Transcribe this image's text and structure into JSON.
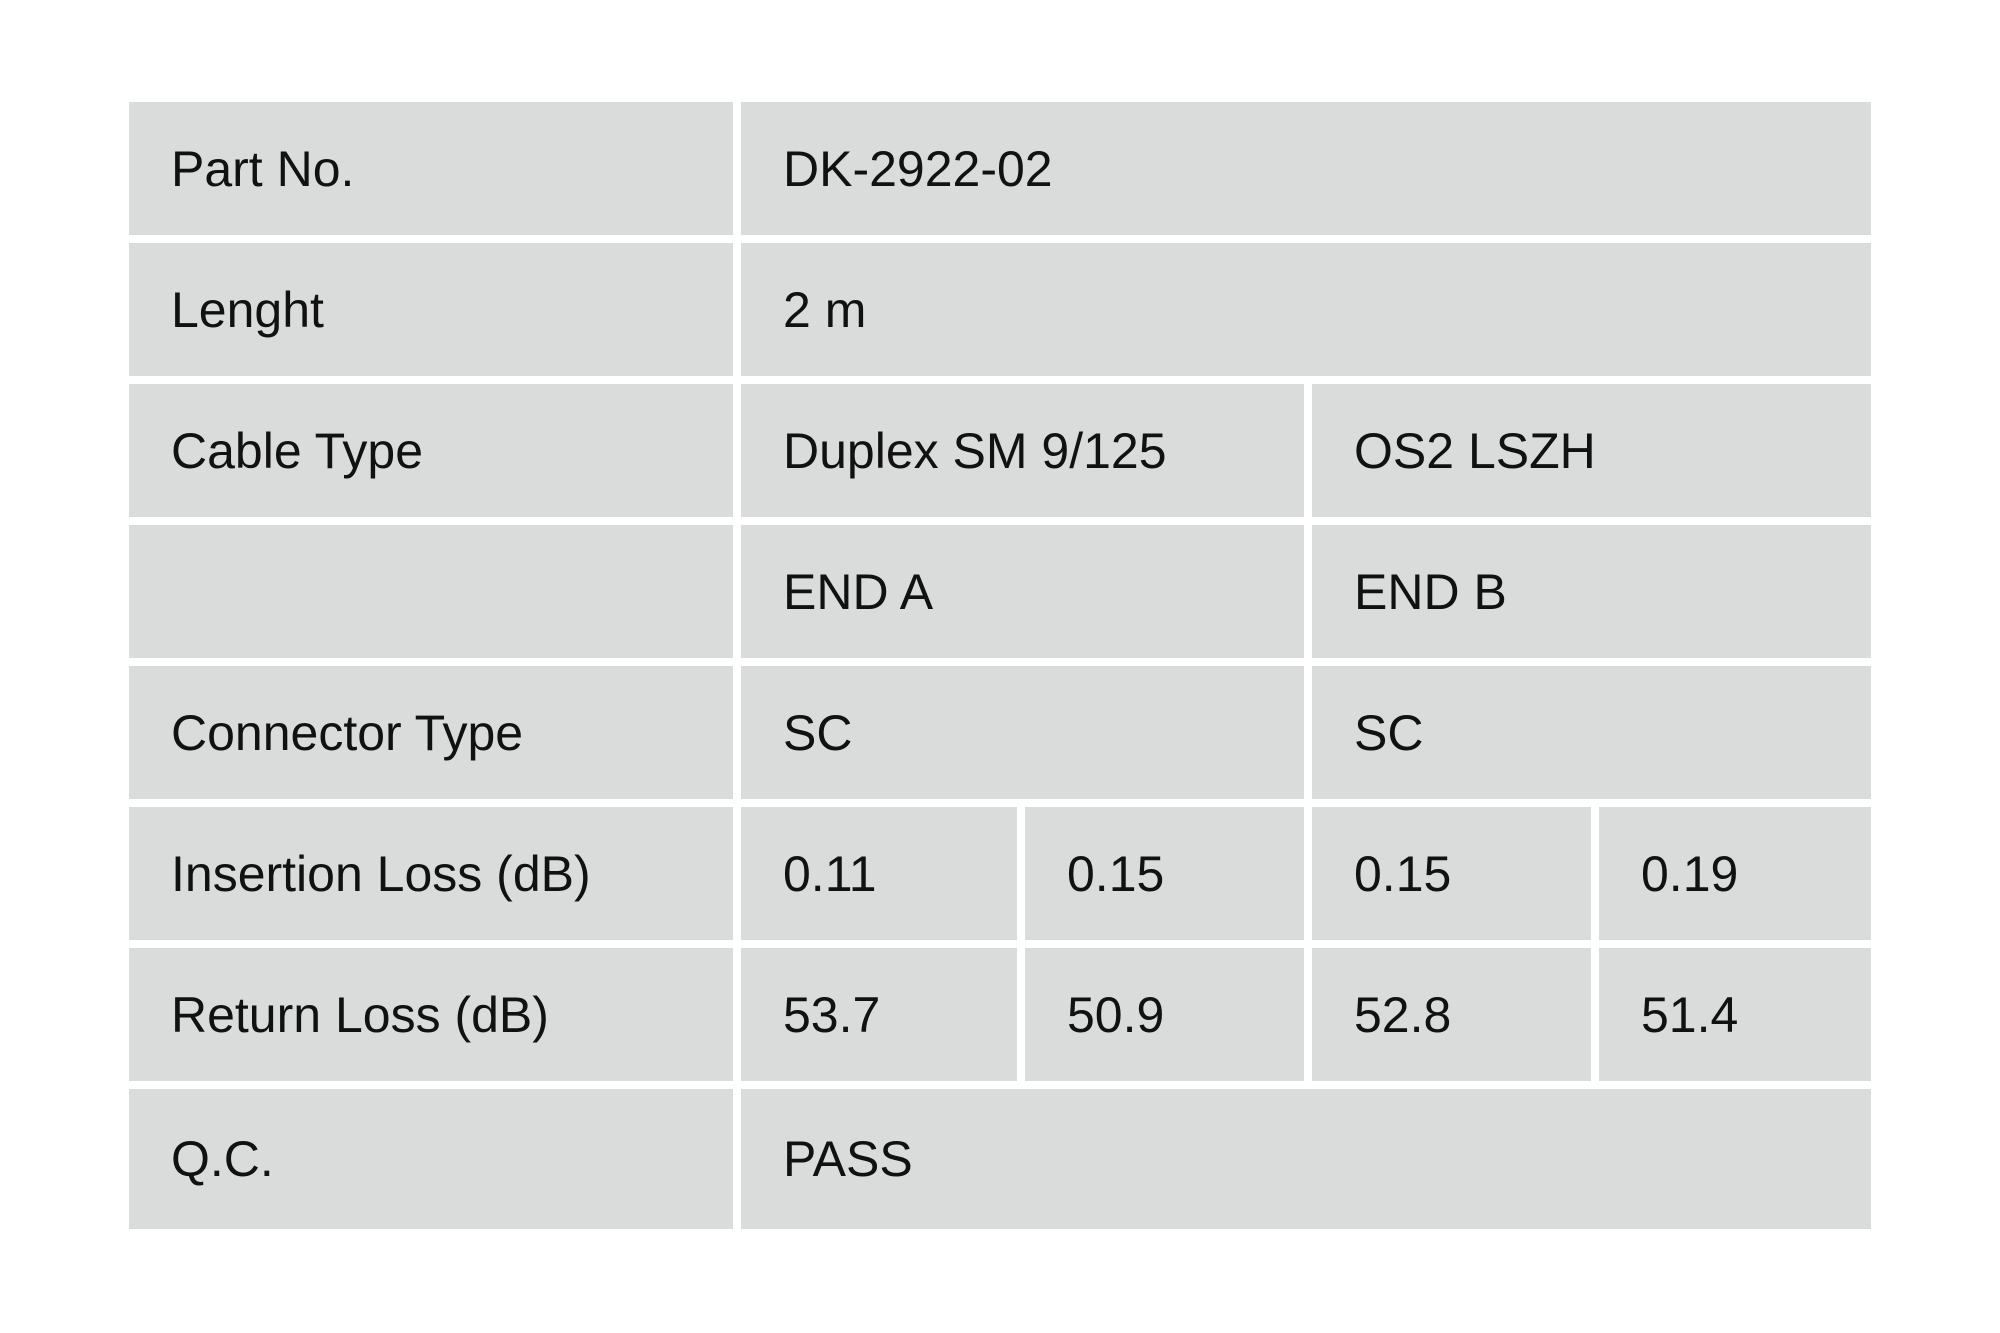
{
  "rows": {
    "part_no": {
      "label": "Part No.",
      "value": "DK-2922-02"
    },
    "length": {
      "label": "Lenght",
      "value": "2 m"
    },
    "cable_type": {
      "label": "Cable Type",
      "value_a": "Duplex SM 9/125",
      "value_b": "OS2 LSZH"
    },
    "ends": {
      "label": "",
      "end_a": "END A",
      "end_b": "END B"
    },
    "connector_type": {
      "label": "Connector Type",
      "end_a": "SC",
      "end_b": "SC"
    },
    "insertion_loss": {
      "label": "Insertion Loss (dB)",
      "values": [
        "0.11",
        "0.15",
        "0.15",
        "0.19"
      ]
    },
    "return_loss": {
      "label": "Return Loss (dB)",
      "values": [
        "53.7",
        "50.9",
        "52.8",
        "51.4"
      ]
    },
    "qc": {
      "label": "Q.C.",
      "value": "PASS"
    }
  },
  "colors": {
    "cell_background": "#dadcdb",
    "text": "#111111"
  }
}
